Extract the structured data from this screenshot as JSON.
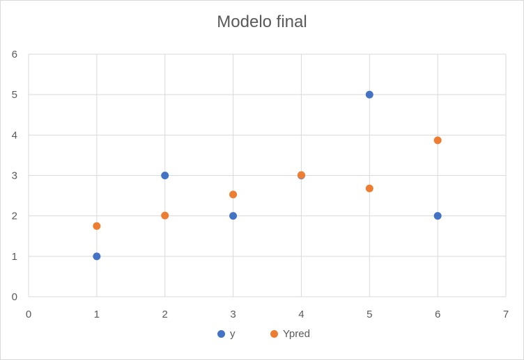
{
  "chart_data": {
    "type": "scatter",
    "title": "Modelo final",
    "xlabel": "",
    "ylabel": "",
    "xlim": [
      0,
      7
    ],
    "ylim": [
      0,
      6
    ],
    "xticks": [
      "0",
      "1",
      "2",
      "3",
      "4",
      "5",
      "6",
      "7"
    ],
    "yticks": [
      "0",
      "1",
      "2",
      "3",
      "4",
      "5",
      "6"
    ],
    "grid": true,
    "legend_position": "bottom",
    "series": [
      {
        "name": "y",
        "color": "#4472c4",
        "points": [
          {
            "x": 1,
            "y": 1
          },
          {
            "x": 2,
            "y": 3
          },
          {
            "x": 3,
            "y": 2
          },
          {
            "x": 4,
            "y": 3
          },
          {
            "x": 5,
            "y": 5
          },
          {
            "x": 6,
            "y": 2
          }
        ]
      },
      {
        "name": "Ypred",
        "color": "#ed7d31",
        "points": [
          {
            "x": 1,
            "y": 1.75
          },
          {
            "x": 2,
            "y": 2.01
          },
          {
            "x": 3,
            "y": 2.53
          },
          {
            "x": 4,
            "y": 3.01
          },
          {
            "x": 5,
            "y": 2.68
          },
          {
            "x": 6,
            "y": 3.87
          }
        ]
      }
    ]
  }
}
